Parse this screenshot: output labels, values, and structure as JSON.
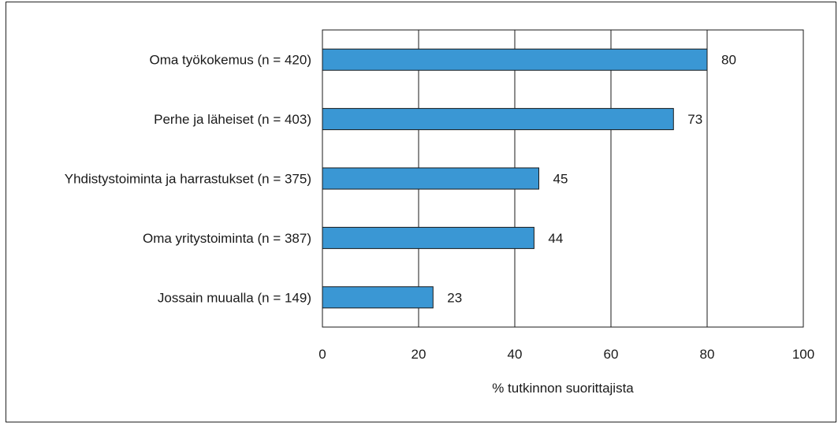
{
  "chart_data": {
    "type": "bar",
    "orientation": "horizontal",
    "categories": [
      "Oma työkokemus (n = 420)",
      "Perhe ja läheiset (n = 403)",
      "Yhdistystoiminta ja harrastukset (n = 375)",
      "Oma yritystoiminta (n = 387)",
      "Jossain muualla (n = 149)"
    ],
    "values": [
      80,
      73,
      45,
      44,
      23
    ],
    "value_labels": [
      "80",
      "73",
      "45",
      "44",
      "23"
    ],
    "xlabel": "% tutkinnon suorittajista",
    "ylabel": "",
    "xlim": [
      0,
      100
    ],
    "xticks": [
      0,
      20,
      40,
      60,
      80,
      100
    ],
    "xtick_labels": [
      "0",
      "20",
      "40",
      "60",
      "80",
      "100"
    ],
    "grid": "vertical",
    "bar_color": "#3a97d4",
    "bar_edge_color": "#1a1a1a"
  }
}
